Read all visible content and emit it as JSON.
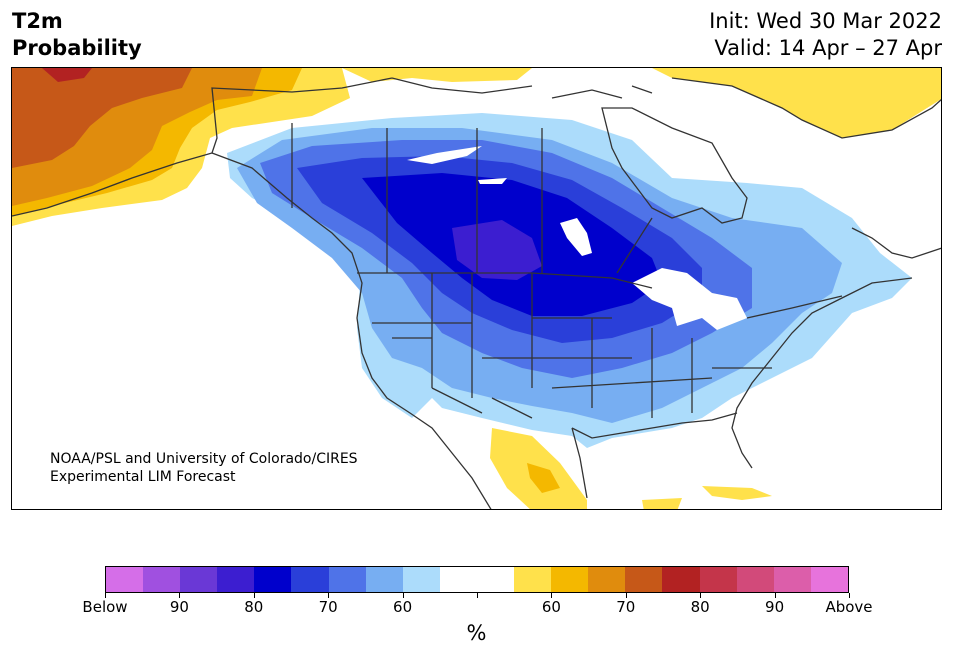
{
  "header": {
    "variable": "T2m",
    "product": "Probability",
    "init": "Init: Wed 30 Mar 2022",
    "valid": "Valid: 14 Apr – 27 Apr"
  },
  "credit": {
    "line1": "NOAA/PSL and University of Colorado/CIRES",
    "line2": "Experimental LIM Forecast"
  },
  "colorbar": {
    "colors": [
      "#d56ee8",
      "#a050e0",
      "#6a38d6",
      "#3c1ed0",
      "#0000cc",
      "#2a3fd9",
      "#4f73e8",
      "#77aef2",
      "#acdcfb",
      "#ffffff",
      "#ffffff",
      "#ffe14b",
      "#f4b800",
      "#e08c0d",
      "#c65818",
      "#b22222",
      "#c4354a",
      "#d24a7a",
      "#dc5eaa",
      "#e773dc"
    ],
    "tick_labels": [
      "Below",
      "90",
      "80",
      "70",
      "60",
      "",
      "60",
      "70",
      "80",
      "90",
      "Above"
    ],
    "unit_label": "%"
  },
  "map_colors": {
    "land_below_50": "#acdcfb",
    "below_60": "#77aef2",
    "below_70": "#4f73e8",
    "below_80": "#2a3fd9",
    "below_90": "#0000cc",
    "above_50": "#ffe14b",
    "above_60": "#f4b800",
    "above_70": "#e08c0d",
    "above_80": "#c65818",
    "extreme": "#b22222"
  }
}
